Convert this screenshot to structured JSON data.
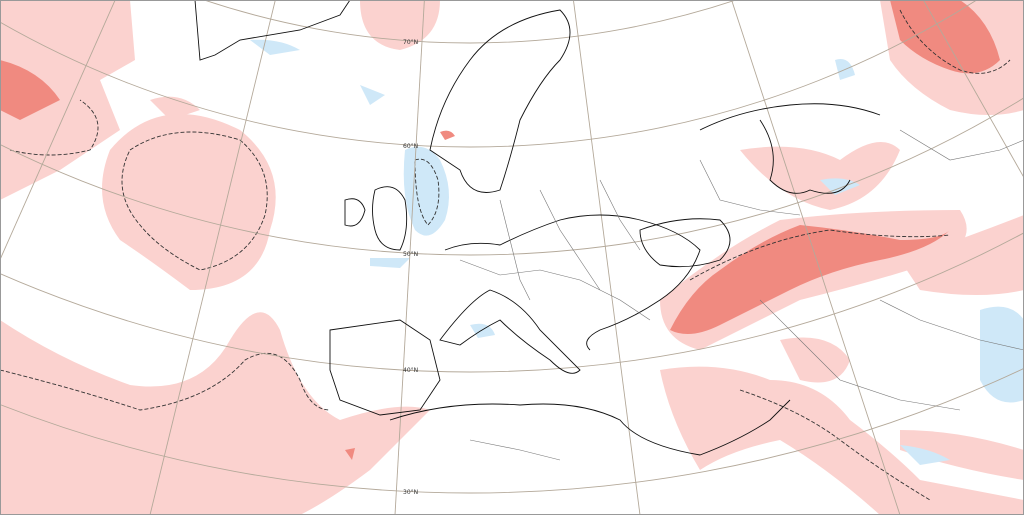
{
  "graticule": {
    "lat_labels": [
      "70°N",
      "60°N",
      "50°N",
      "40°N",
      "30°N"
    ]
  }
}
